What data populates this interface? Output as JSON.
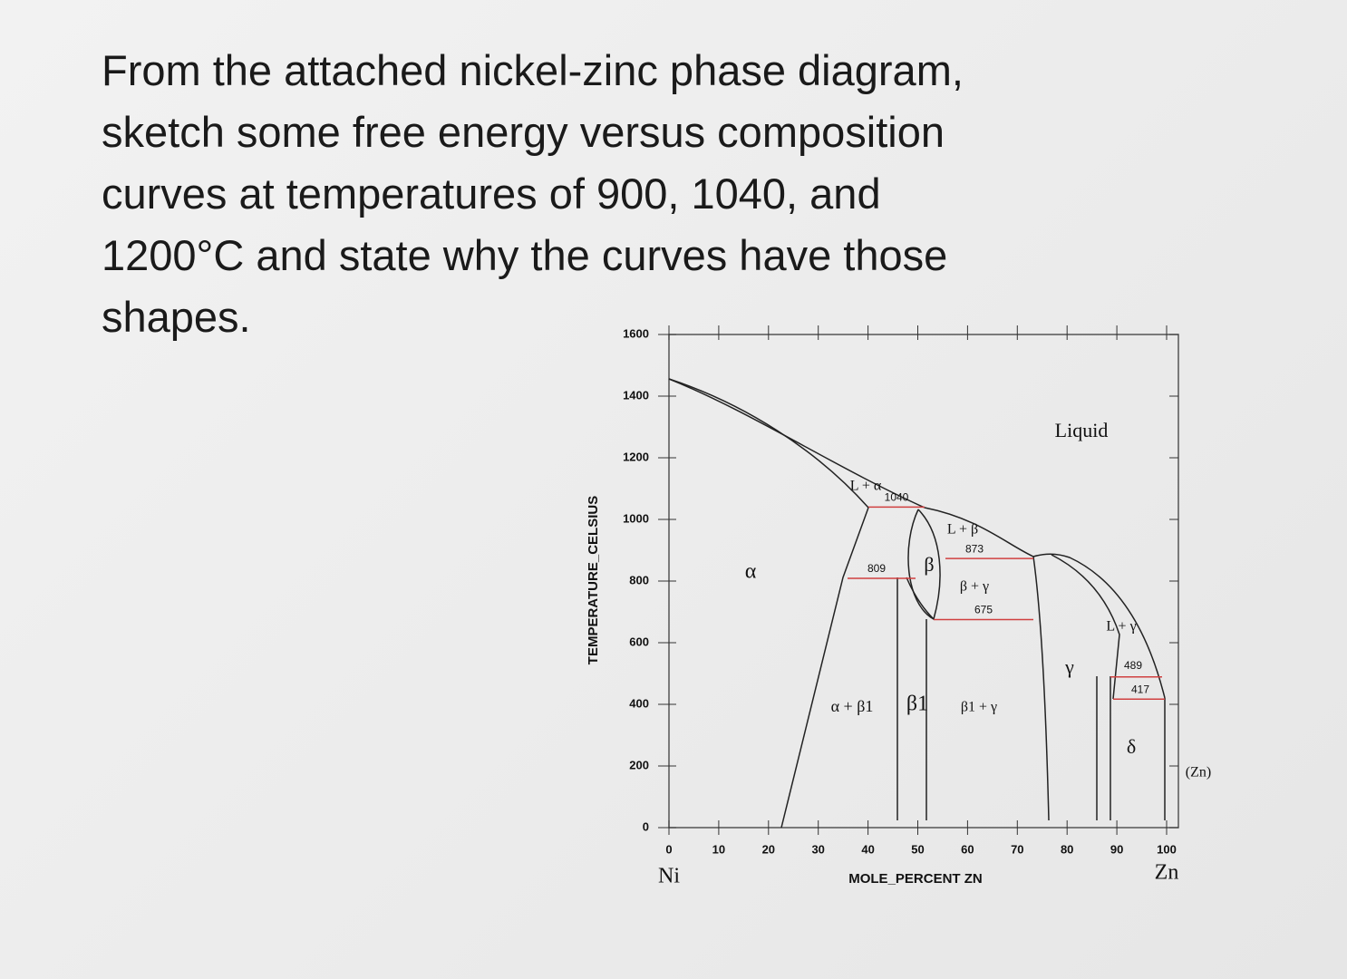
{
  "question": {
    "lines": [
      "From the attached nickel-zinc phase diagram,",
      "sketch some free energy versus composition",
      "curves at temperatures of 900, 1040, and",
      "1200°C and state why the curves have those",
      "shapes."
    ]
  },
  "diagram": {
    "y_axis": {
      "title": "TEMPERATURE_CELSIUS",
      "ticks": [
        0,
        200,
        400,
        600,
        800,
        1000,
        1200,
        1400,
        1600
      ]
    },
    "x_axis": {
      "title": "MOLE_PERCENT ZN",
      "ticks": [
        0,
        10,
        20,
        30,
        40,
        50,
        60,
        70,
        80,
        90,
        100
      ],
      "left_label": "Ni",
      "right_label": "Zn"
    },
    "regions": [
      "Liquid",
      "L + α",
      "α",
      "β",
      "L + β",
      "β + γ",
      "γ",
      "L + γ",
      "α + β1",
      "β1",
      "β1 + γ",
      "δ",
      "(Zn)"
    ],
    "isotherms": [
      1040,
      809,
      873,
      675,
      489,
      417
    ]
  }
}
